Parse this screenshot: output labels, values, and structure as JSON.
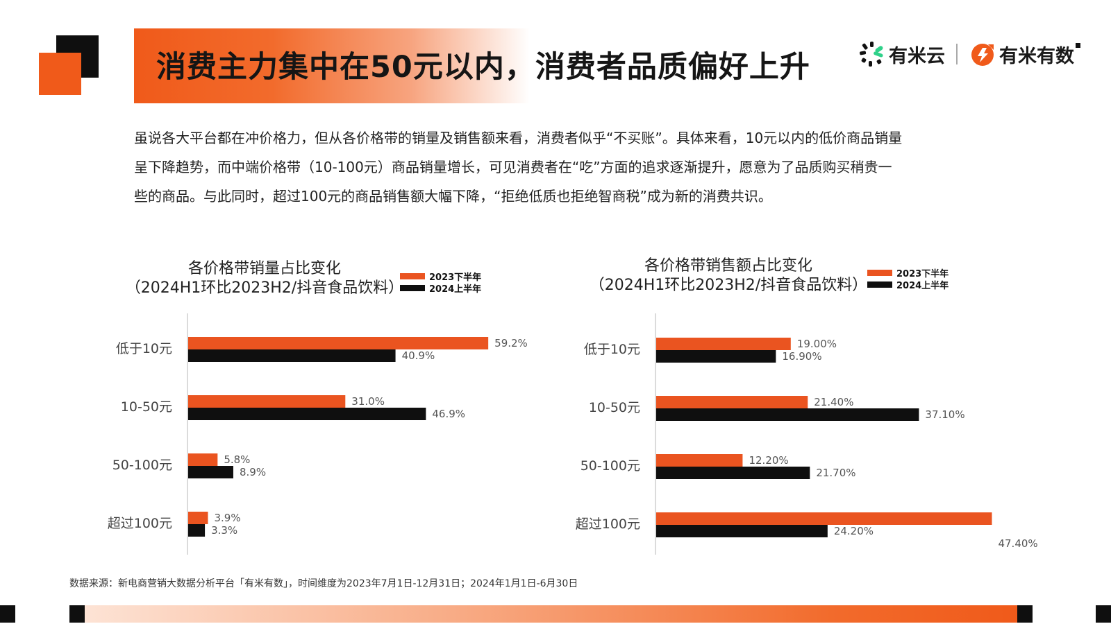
{
  "header": {
    "title": "消费主力集中在50元以内，消费者品质偏好上升",
    "logo1_text": "有米云",
    "logo2_text": "有米有数"
  },
  "intro": {
    "line1": "虽说各大平台都在冲价格力，但从各价格带的销量及销售额来看，消费者似乎“不买账”。具体来看，10元以内的低价商品销量",
    "line2": "呈下降趋势，而中端价格带（10-100元）商品销量增长，可见消费者在“吃”方面的追求逐渐提升，愿意为了品质购买稍贵一",
    "line3": "些的商品。与此同时，超过100元的商品销售额大幅下降，“拒绝低质也拒绝智商税”成为新的消费共识。"
  },
  "colors": {
    "series_2023H2": "#ea5420",
    "series_2024H1": "#0f0f0f",
    "accent": "#f05a1a"
  },
  "chart_data": [
    {
      "type": "bar",
      "orientation": "horizontal",
      "title": "各价格带销量占比变化",
      "subtitle": "（2024H1环比2023H2/抖音食品饮料）",
      "categories": [
        "低于10元",
        "10-50元",
        "50-100元",
        "超过100元"
      ],
      "series": [
        {
          "name": "2023下半年",
          "values": [
            59.2,
            31.0,
            5.8,
            3.9
          ],
          "labels": [
            "59.2%",
            "31.0%",
            "5.8%",
            "3.9%"
          ]
        },
        {
          "name": "2024上半年",
          "values": [
            40.9,
            46.9,
            8.9,
            3.3
          ],
          "labels": [
            "40.9%",
            "46.9%",
            "8.9%",
            "3.3%"
          ]
        }
      ],
      "legend": "top-right",
      "grid": false
    },
    {
      "type": "bar",
      "orientation": "horizontal",
      "title": "各价格带销售额占比变化",
      "subtitle": "（2024H1环比2023H2/抖音食品饮料）",
      "categories": [
        "低于10元",
        "10-50元",
        "50-100元",
        "超过100元"
      ],
      "series": [
        {
          "name": "2023下半年",
          "values": [
            19.0,
            21.4,
            12.2,
            47.4
          ],
          "labels": [
            "19.00%",
            "21.40%",
            "12.20%",
            "47.40%"
          ]
        },
        {
          "name": "2024上半年",
          "values": [
            16.9,
            37.1,
            21.7,
            24.2
          ],
          "labels": [
            "16.90%",
            "37.10%",
            "21.70%",
            "24.20%"
          ]
        }
      ],
      "legend": "top-right",
      "grid": false
    }
  ],
  "footer": {
    "source": "数据来源：新电商营销大数据分析平台「有米有数」，时间维度为2023年7月1日-12月31日；2024年1月1日-6月30日"
  }
}
